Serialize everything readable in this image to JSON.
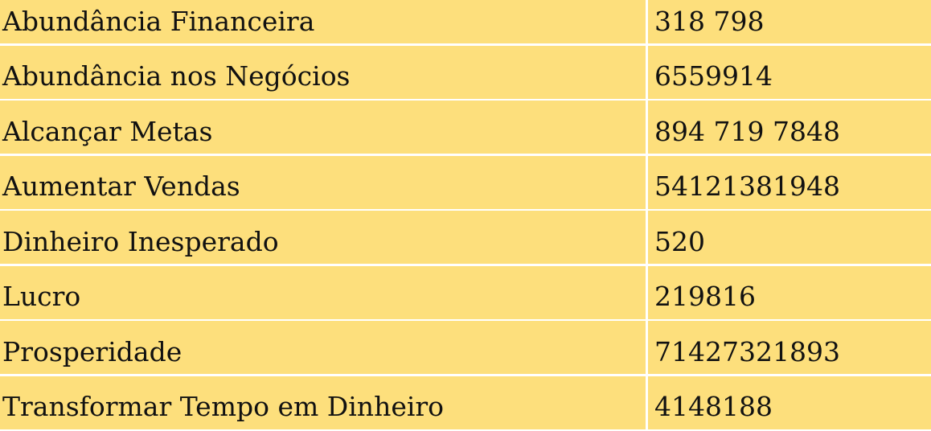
{
  "table": {
    "rows": [
      {
        "label": "Abundância Financeira",
        "value": "318 798"
      },
      {
        "label": "Abundância nos Negócios",
        "value": "6559914"
      },
      {
        "label": "Alcançar Metas",
        "value": "894 719 7848"
      },
      {
        "label": "Aumentar Vendas",
        "value": "54121381948"
      },
      {
        "label": "Dinheiro Inesperado",
        "value": "520"
      },
      {
        "label": "Lucro",
        "value": "219816"
      },
      {
        "label": "Prosperidade",
        "value": "71427321893"
      },
      {
        "label": "Transformar Tempo em Dinheiro",
        "value": "4148188"
      }
    ]
  },
  "colors": {
    "cell_background": "#fddf7c",
    "grid_lines": "#ffffff"
  }
}
